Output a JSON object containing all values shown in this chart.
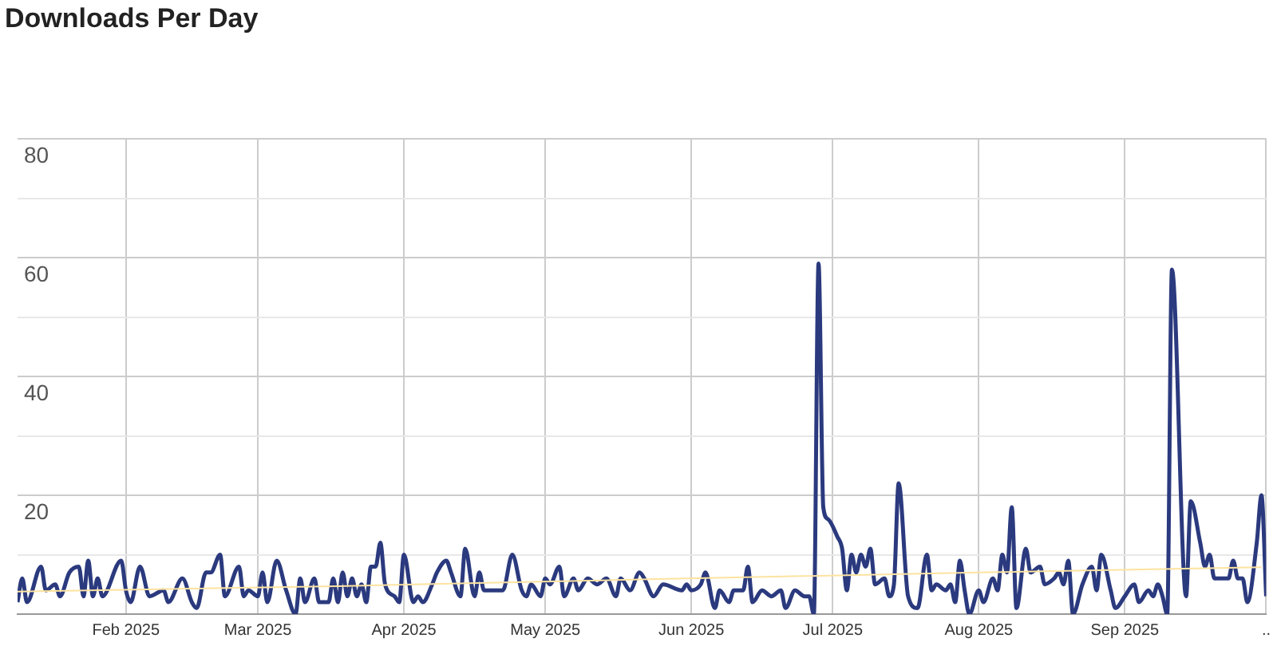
{
  "chart_data": {
    "type": "line",
    "title": "Downloads Per Day",
    "marker": "none",
    "line_style": "solid",
    "grid": true,
    "xlim": [
      "2025-01-09",
      "2025-10-01"
    ],
    "xticks": [
      {
        "value": "2025-02-01",
        "label": "Feb 2025"
      },
      {
        "value": "2025-03-01",
        "label": "Mar 2025"
      },
      {
        "value": "2025-04-01",
        "label": "Apr 2025"
      },
      {
        "value": "2025-05-01",
        "label": "May 2025"
      },
      {
        "value": "2025-06-01",
        "label": "Jun 2025"
      },
      {
        "value": "2025-07-01",
        "label": "Jul 2025"
      },
      {
        "value": "2025-08-01",
        "label": "Aug 2025"
      },
      {
        "value": "2025-09-01",
        "label": "Sep 2025"
      },
      {
        "value": "2025-10-01",
        "label": ".."
      }
    ],
    "ylim": [
      0,
      80
    ],
    "yticks": [
      {
        "value": 0,
        "label": null
      },
      {
        "value": 10,
        "label": null
      },
      20,
      {
        "value": 30,
        "label": null
      },
      40,
      {
        "value": 50,
        "label": null
      },
      60,
      {
        "value": 70,
        "label": null
      },
      80
    ],
    "series": [
      {
        "color": "#2b3a7e",
        "x": [
          "2025-01-09",
          "2025-01-10",
          "2025-01-11",
          "2025-01-14",
          "2025-01-15",
          "2025-01-17",
          "2025-01-18",
          "2025-01-20",
          "2025-01-22",
          "2025-01-23",
          "2025-01-24",
          "2025-01-25",
          "2025-01-26",
          "2025-01-27",
          "2025-01-31",
          "2025-02-01",
          "2025-02-02",
          "2025-02-04",
          "2025-02-06",
          "2025-02-09",
          "2025-02-10",
          "2025-02-13",
          "2025-02-15",
          "2025-02-16",
          "2025-02-18",
          "2025-02-19",
          "2025-02-21",
          "2025-02-22",
          "2025-02-25",
          "2025-02-26",
          "2025-02-27",
          "2025-03-01",
          "2025-03-02",
          "2025-03-03",
          "2025-03-05",
          "2025-03-07",
          "2025-03-09",
          "2025-03-10",
          "2025-03-11",
          "2025-03-13",
          "2025-03-14",
          "2025-03-16",
          "2025-03-17",
          "2025-03-18",
          "2025-03-19",
          "2025-03-20",
          "2025-03-21",
          "2025-03-22",
          "2025-03-23",
          "2025-03-24",
          "2025-03-25",
          "2025-03-26",
          "2025-03-27",
          "2025-03-28",
          "2025-03-30",
          "2025-03-31",
          "2025-04-01",
          "2025-04-03",
          "2025-04-04",
          "2025-04-05",
          "2025-04-07",
          "2025-04-08",
          "2025-04-10",
          "2025-04-11",
          "2025-04-13",
          "2025-04-14",
          "2025-04-16",
          "2025-04-17",
          "2025-04-18",
          "2025-04-20",
          "2025-04-22",
          "2025-04-24",
          "2025-04-26",
          "2025-04-27",
          "2025-04-28",
          "2025-04-30",
          "2025-05-01",
          "2025-05-02",
          "2025-05-04",
          "2025-05-05",
          "2025-05-07",
          "2025-05-08",
          "2025-05-10",
          "2025-05-12",
          "2025-05-14",
          "2025-05-16",
          "2025-05-17",
          "2025-05-19",
          "2025-05-21",
          "2025-05-22",
          "2025-05-24",
          "2025-05-26",
          "2025-05-30",
          "2025-05-31",
          "2025-06-01",
          "2025-06-03",
          "2025-06-04",
          "2025-06-06",
          "2025-06-07",
          "2025-06-09",
          "2025-06-10",
          "2025-06-12",
          "2025-06-13",
          "2025-06-14",
          "2025-06-16",
          "2025-06-18",
          "2025-06-20",
          "2025-06-21",
          "2025-06-23",
          "2025-06-25",
          "2025-06-26",
          "2025-06-27",
          "2025-06-28",
          "2025-06-29",
          "2025-06-30",
          "2025-07-02",
          "2025-07-03",
          "2025-07-04",
          "2025-07-05",
          "2025-07-06",
          "2025-07-07",
          "2025-07-08",
          "2025-07-09",
          "2025-07-10",
          "2025-07-12",
          "2025-07-13",
          "2025-07-14",
          "2025-07-15",
          "2025-07-17",
          "2025-07-19",
          "2025-07-21",
          "2025-07-22",
          "2025-07-23",
          "2025-07-25",
          "2025-07-26",
          "2025-07-27",
          "2025-07-28",
          "2025-07-29",
          "2025-07-30",
          "2025-08-01",
          "2025-08-02",
          "2025-08-04",
          "2025-08-05",
          "2025-08-06",
          "2025-08-07",
          "2025-08-08",
          "2025-08-09",
          "2025-08-11",
          "2025-08-12",
          "2025-08-14",
          "2025-08-15",
          "2025-08-17",
          "2025-08-18",
          "2025-08-19",
          "2025-08-20",
          "2025-08-21",
          "2025-08-23",
          "2025-08-25",
          "2025-08-26",
          "2025-08-27",
          "2025-08-29",
          "2025-08-30",
          "2025-09-01",
          "2025-09-03",
          "2025-09-04",
          "2025-09-06",
          "2025-09-07",
          "2025-09-08",
          "2025-09-09",
          "2025-09-10",
          "2025-09-11",
          "2025-09-14",
          "2025-09-15",
          "2025-09-17",
          "2025-09-18",
          "2025-09-19",
          "2025-09-20",
          "2025-09-22",
          "2025-09-23",
          "2025-09-24",
          "2025-09-25",
          "2025-09-26",
          "2025-09-27",
          "2025-09-29",
          "2025-09-30",
          "2025-10-01"
        ],
        "values": [
          2,
          6,
          2,
          8,
          4,
          5,
          3,
          7,
          8,
          3,
          9,
          3,
          6,
          3,
          9,
          4,
          2,
          8,
          3,
          4,
          2,
          6,
          2,
          1,
          7,
          7,
          10,
          3,
          8,
          3,
          4,
          3,
          7,
          2,
          9,
          4,
          0,
          6,
          2,
          6,
          2,
          2,
          6,
          2,
          7,
          3,
          6,
          3,
          5,
          2,
          8,
          8,
          12,
          5,
          3,
          2,
          10,
          2,
          3,
          2,
          5,
          7,
          9,
          7,
          3,
          11,
          3,
          7,
          4,
          4,
          4,
          10,
          4,
          3,
          5,
          3,
          6,
          5,
          8,
          3,
          6,
          4,
          6,
          5,
          6,
          3,
          6,
          4,
          7,
          6,
          3,
          5,
          4,
          5,
          4,
          5,
          7,
          1,
          4,
          2,
          4,
          4,
          8,
          2,
          4,
          3,
          4,
          1,
          4,
          3,
          3,
          0,
          59,
          18,
          16,
          13,
          11,
          4,
          10,
          7,
          10,
          8,
          11,
          5,
          6,
          3,
          5,
          22,
          3,
          1,
          10,
          4,
          5,
          4,
          5,
          2,
          9,
          4,
          0,
          4,
          2,
          6,
          4,
          10,
          7,
          18,
          1,
          11,
          7,
          8,
          5,
          6,
          7,
          5,
          9,
          0,
          5,
          8,
          4,
          10,
          4,
          1,
          3,
          5,
          2,
          4,
          3,
          5,
          3,
          0,
          58,
          3,
          19,
          12,
          8,
          10,
          6,
          6,
          6,
          9,
          6,
          6,
          2,
          12,
          20,
          3
        ]
      },
      {
        "color": "#fde3a0",
        "x": [
          "2025-01-09",
          "2025-03-18",
          "2025-05-25",
          "2025-08-01",
          "2025-09-30"
        ],
        "values": [
          3.8,
          4.7,
          5.9,
          7,
          7.9
        ]
      }
    ]
  }
}
